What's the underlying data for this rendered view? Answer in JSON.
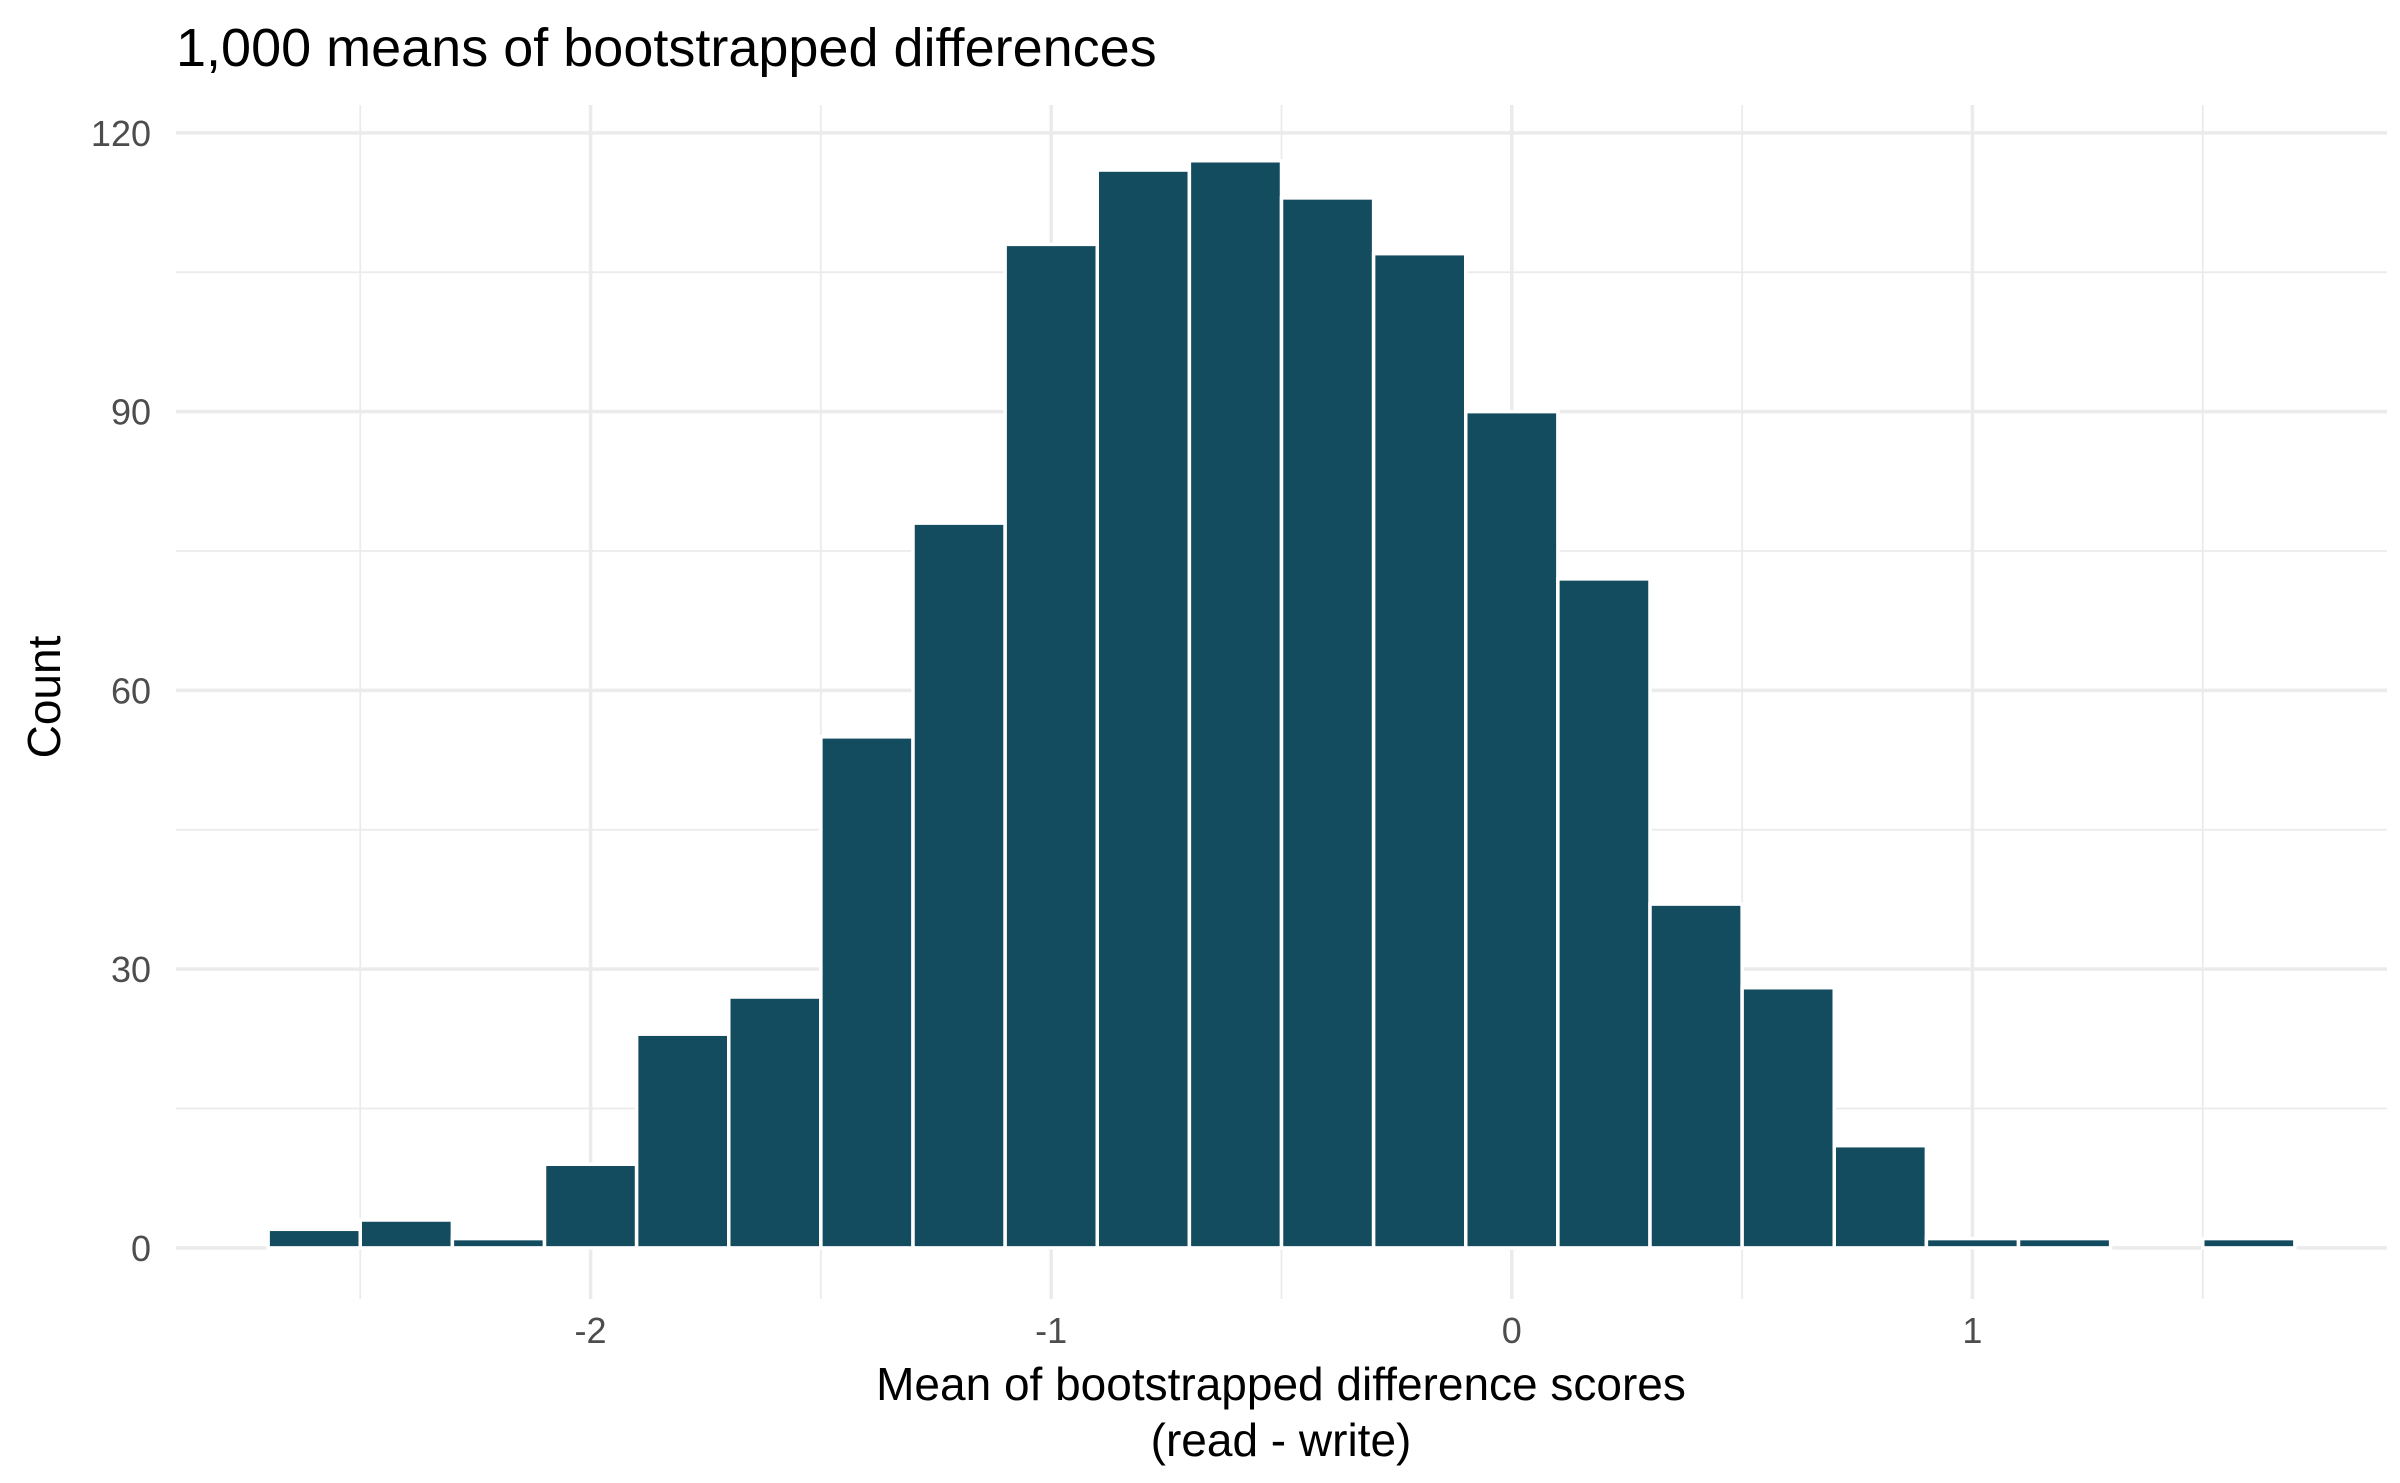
{
  "chart_data": {
    "type": "bar",
    "title": "1,000 means of bootstrapped differences",
    "xlabel_line1": "Mean of bootstrapped difference scores",
    "xlabel_line2": "(read - write)",
    "ylabel": "Count",
    "bar_color": "#134b5f",
    "grid": true,
    "xlim": [
      -2.9,
      1.9
    ],
    "ylim": [
      -5.5,
      123
    ],
    "x_ticks": [
      -2,
      -1,
      0,
      1
    ],
    "x_tick_labels": [
      "-2",
      "-1",
      "0",
      "1"
    ],
    "y_ticks": [
      0,
      30,
      60,
      90,
      120
    ],
    "y_tick_labels": [
      "0",
      "30",
      "60",
      "90",
      "120"
    ],
    "bin_width": 0.2,
    "bins": [
      {
        "x0": -2.7,
        "x1": -2.5,
        "count": 2
      },
      {
        "x0": -2.5,
        "x1": -2.3,
        "count": 3
      },
      {
        "x0": -2.3,
        "x1": -2.1,
        "count": 1
      },
      {
        "x0": -2.1,
        "x1": -1.9,
        "count": 9
      },
      {
        "x0": -1.9,
        "x1": -1.7,
        "count": 23
      },
      {
        "x0": -1.7,
        "x1": -1.5,
        "count": 27
      },
      {
        "x0": -1.5,
        "x1": -1.3,
        "count": 55
      },
      {
        "x0": -1.3,
        "x1": -1.1,
        "count": 78
      },
      {
        "x0": -1.1,
        "x1": -0.9,
        "count": 108
      },
      {
        "x0": -0.9,
        "x1": -0.7,
        "count": 116
      },
      {
        "x0": -0.7,
        "x1": -0.5,
        "count": 117
      },
      {
        "x0": -0.5,
        "x1": -0.3,
        "count": 113
      },
      {
        "x0": -0.3,
        "x1": -0.1,
        "count": 107
      },
      {
        "x0": -0.1,
        "x1": 0.1,
        "count": 90
      },
      {
        "x0": 0.1,
        "x1": 0.3,
        "count": 72
      },
      {
        "x0": 0.3,
        "x1": 0.5,
        "count": 37
      },
      {
        "x0": 0.5,
        "x1": 0.7,
        "count": 28
      },
      {
        "x0": 0.7,
        "x1": 0.9,
        "count": 11
      },
      {
        "x0": 0.9,
        "x1": 1.1,
        "count": 1
      },
      {
        "x0": 1.1,
        "x1": 1.3,
        "count": 1
      },
      {
        "x0": 1.3,
        "x1": 1.5,
        "count": 0
      },
      {
        "x0": 1.5,
        "x1": 1.7,
        "count": 1
      }
    ]
  }
}
